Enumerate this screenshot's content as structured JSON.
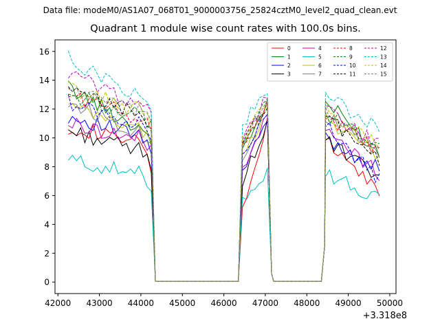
{
  "suptitle": "Data file: modeM0/AS1A07_068T01_9000003756_25824cztM0_level2_quad_clean.evt",
  "chart_data": {
    "type": "line",
    "title": "Quadrant 1 module wise count rates with 100.0s bins.",
    "xlabel": "",
    "ylabel": "",
    "x_offset_label": "+3.318e8",
    "xlim": [
      41930,
      50150
    ],
    "ylim": [
      -0.8,
      16.8
    ],
    "x_ticks": [
      42000,
      43000,
      44000,
      45000,
      46000,
      47000,
      48000,
      49000,
      50000
    ],
    "x_tick_labels": [
      "42000",
      "43000",
      "44000",
      "45000",
      "46000",
      "47000",
      "48000",
      "49000",
      "50000"
    ],
    "y_ticks": [
      0,
      2,
      4,
      6,
      8,
      10,
      12,
      14,
      16
    ],
    "y_tick_labels": [
      "0",
      "2",
      "4",
      "6",
      "8",
      "10",
      "12",
      "14",
      "16"
    ],
    "legend_position": "top-right",
    "segments": [
      {
        "x_start": 42250,
        "x_end": 44250,
        "step": 100
      },
      {
        "x_start": 44350,
        "x_end": 46350,
        "step": 100,
        "zero": true
      },
      {
        "x_start": 46450,
        "x_end": 47050,
        "step": 100
      },
      {
        "x_start": 47150,
        "x_end": 48350,
        "step": 100,
        "zero": true
      },
      {
        "x_start": 48450,
        "x_end": 49750,
        "step": 100
      }
    ],
    "series": [
      {
        "name": "0",
        "color": "#ff0000",
        "dash": false,
        "levels": [
          10.8,
          9.7,
          5.0,
          11.0,
          7.5,
          9.7,
          6.3
        ]
      },
      {
        "name": "1",
        "color": "#008000",
        "dash": false,
        "levels": [
          13.5,
          10.8,
          9.0,
          12.5,
          8.5,
          12.5,
          9.0
        ]
      },
      {
        "name": "2",
        "color": "#0000ff",
        "dash": false,
        "levels": [
          11.5,
          10.2,
          7.5,
          11.3,
          8.5,
          10.0,
          7.8
        ]
      },
      {
        "name": "3",
        "color": "#000000",
        "dash": false,
        "levels": [
          10.5,
          9.2,
          7.0,
          11.0,
          7.5,
          9.8,
          7.2
        ]
      },
      {
        "name": "4",
        "color": "#bf00bf",
        "dash": false,
        "levels": [
          11.0,
          10.0,
          8.0,
          11.5,
          8.0,
          10.5,
          7.5
        ]
      },
      {
        "name": "5",
        "color": "#00bfbf",
        "dash": false,
        "levels": [
          8.5,
          7.5,
          5.8,
          7.7,
          6.5,
          7.6,
          5.6
        ]
      },
      {
        "name": "6",
        "color": "#bfbf00",
        "dash": false,
        "levels": [
          12.2,
          10.7,
          8.5,
          12.2,
          9.0,
          11.5,
          8.5
        ]
      },
      {
        "name": "7",
        "color": "#808080",
        "dash": false,
        "levels": [
          12.5,
          10.5,
          8.5,
          12.5,
          9.0,
          11.5,
          8.8
        ]
      },
      {
        "name": "8",
        "color": "#ff0000",
        "dash": true,
        "levels": [
          13.0,
          11.5,
          9.5,
          12.5,
          9.5,
          11.5,
          9.0
        ]
      },
      {
        "name": "9",
        "color": "#008000",
        "dash": true,
        "levels": [
          13.0,
          11.7,
          9.5,
          12.7,
          9.5,
          11.7,
          9.5
        ]
      },
      {
        "name": "10",
        "color": "#0000ff",
        "dash": true,
        "levels": [
          12.5,
          11.0,
          9.0,
          12.0,
          9.0,
          10.8,
          7.0
        ]
      },
      {
        "name": "11",
        "color": "#000000",
        "dash": true,
        "levels": [
          13.2,
          11.8,
          9.5,
          12.5,
          9.5,
          11.5,
          8.5
        ]
      },
      {
        "name": "12",
        "color": "#bf00bf",
        "dash": true,
        "levels": [
          14.5,
          12.5,
          10.2,
          12.8,
          10.0,
          12.0,
          9.5
        ]
      },
      {
        "name": "13",
        "color": "#00bfbf",
        "dash": true,
        "levels": [
          15.5,
          13.0,
          11.0,
          13.2,
          10.8,
          13.0,
          10.5
        ]
      },
      {
        "name": "14",
        "color": "#bfbf00",
        "dash": true,
        "levels": [
          13.5,
          12.0,
          10.0,
          12.5,
          9.8,
          12.0,
          9.5
        ]
      },
      {
        "name": "15",
        "color": "#808080",
        "dash": true,
        "levels": [
          13.5,
          11.8,
          9.8,
          12.5,
          10.0,
          12.0,
          9.0
        ]
      }
    ]
  }
}
